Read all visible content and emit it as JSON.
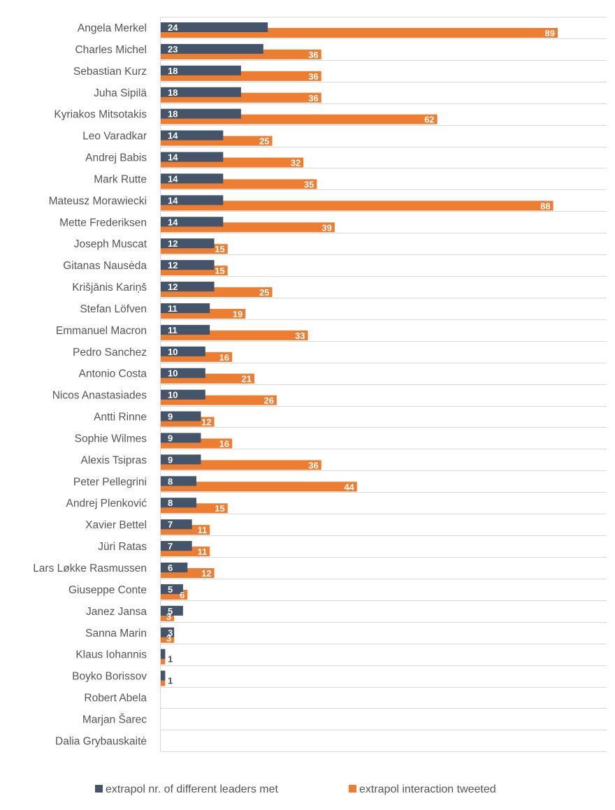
{
  "chart_data": {
    "type": "bar",
    "orientation": "horizontal",
    "title": "",
    "xlabel": "",
    "ylabel": "",
    "xlim": [
      0,
      90
    ],
    "grid": "horizontal separators between categories",
    "legend_position": "bottom",
    "categories": [
      "Angela Merkel",
      "Charles Michel",
      "Sebastian Kurz",
      "Juha Sipilä",
      "Kyriakos Mitsotakis",
      "Leo Varadkar",
      "Andrej Babis",
      "Mark Rutte",
      "Mateusz Morawiecki",
      "Mette Frederiksen",
      "Joseph Muscat",
      "Gitanas Nausėda",
      "Krišjānis Kariņš",
      "Stefan Löfven",
      "Emmanuel Macron",
      "Pedro Sanchez",
      "Antonio Costa",
      "Nicos Anastasiades",
      "Antti Rinne",
      "Sophie Wilmes",
      "Alexis Tsipras",
      "Peter Pellegrini",
      "Andrej Plenković",
      "Xavier Bettel",
      "Jüri Ratas",
      "Lars Løkke Rasmussen",
      "Giuseppe Conte",
      "Janez Jansa",
      "Sanna Marin",
      "Klaus Iohannis",
      "Boyko Borissov",
      "Robert Abela",
      "Marjan Šarec",
      "Dalia Grybauskaitė"
    ],
    "series": [
      {
        "name": "extrapol nr. of different leaders met",
        "color": "#44546a",
        "values": [
          24,
          23,
          18,
          18,
          18,
          14,
          14,
          14,
          14,
          14,
          12,
          12,
          12,
          11,
          11,
          10,
          10,
          10,
          9,
          9,
          9,
          8,
          8,
          7,
          7,
          6,
          5,
          5,
          3,
          1,
          1,
          null,
          null,
          null
        ]
      },
      {
        "name": "extrapol interaction tweeted",
        "color": "#ed7d31",
        "values": [
          89,
          36,
          36,
          36,
          62,
          25,
          32,
          35,
          88,
          39,
          15,
          15,
          25,
          19,
          33,
          16,
          21,
          26,
          12,
          16,
          36,
          44,
          15,
          11,
          11,
          12,
          6,
          3,
          3,
          1,
          1,
          null,
          null,
          null
        ]
      }
    ]
  }
}
